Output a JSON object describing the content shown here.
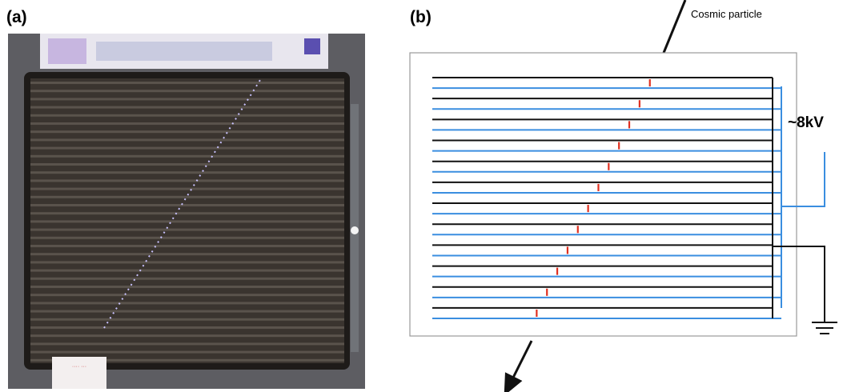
{
  "panels": [
    {
      "label": "(a)"
    },
    {
      "label": "(b)",
      "annotations": [
        "Cosmic particle",
        "~8kV"
      ]
    }
  ]
}
